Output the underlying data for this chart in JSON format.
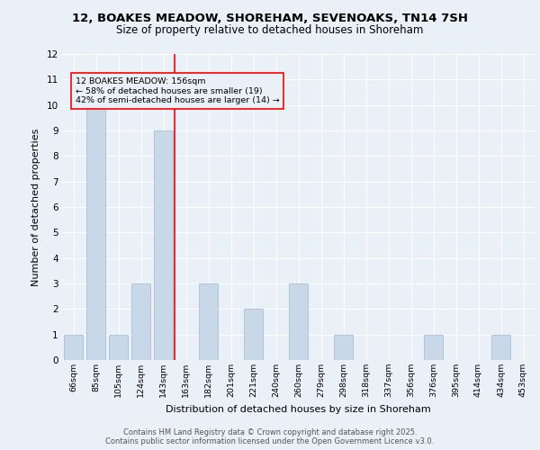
{
  "title_line1": "12, BOAKES MEADOW, SHOREHAM, SEVENOAKS, TN14 7SH",
  "title_line2": "Size of property relative to detached houses in Shoreham",
  "xlabel": "Distribution of detached houses by size in Shoreham",
  "ylabel": "Number of detached properties",
  "categories": [
    "66sqm",
    "85sqm",
    "105sqm",
    "124sqm",
    "143sqm",
    "163sqm",
    "182sqm",
    "201sqm",
    "221sqm",
    "240sqm",
    "260sqm",
    "279sqm",
    "298sqm",
    "318sqm",
    "337sqm",
    "356sqm",
    "376sqm",
    "395sqm",
    "414sqm",
    "434sqm",
    "453sqm"
  ],
  "values": [
    1,
    10,
    1,
    3,
    9,
    0,
    3,
    0,
    2,
    0,
    3,
    0,
    1,
    0,
    0,
    0,
    1,
    0,
    0,
    1,
    0
  ],
  "bar_color": "#c8d8e8",
  "bar_edge_color": "#a0b8cc",
  "red_line_index": 4.5,
  "annotation_box_text": "12 BOAKES MEADOW: 156sqm\n← 58% of detached houses are smaller (19)\n42% of semi-detached houses are larger (14) →",
  "ylim": [
    0,
    12
  ],
  "yticks": [
    0,
    1,
    2,
    3,
    4,
    5,
    6,
    7,
    8,
    9,
    10,
    11,
    12
  ],
  "background_color": "#eaf0f8",
  "plot_bg_color": "#eaf0f8",
  "grid_color": "#ffffff",
  "footer_line1": "Contains HM Land Registry data © Crown copyright and database right 2025.",
  "footer_line2": "Contains public sector information licensed under the Open Government Licence v3.0."
}
